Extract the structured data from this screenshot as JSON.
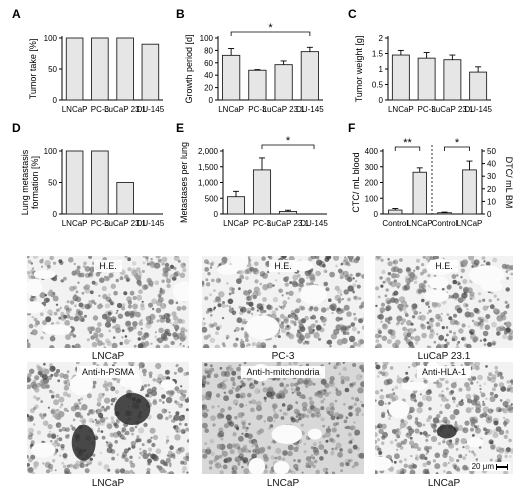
{
  "chart_data": [
    {
      "panel": "A",
      "type": "bar",
      "ylabel": "Tumor take [%]",
      "categories": [
        "LNCaP",
        "PC-3",
        "LuCaP 23.1",
        "DU-145"
      ],
      "values": [
        100,
        100,
        100,
        90
      ],
      "ylim": [
        0,
        100
      ],
      "yticks": [
        "0",
        "50",
        "100"
      ]
    },
    {
      "panel": "B",
      "type": "bar",
      "ylabel": "Growth period [d]",
      "categories": [
        "LNCaP",
        "PC-3",
        "LuCaP 23.1",
        "DU-145"
      ],
      "values": [
        72,
        48,
        57,
        78
      ],
      "errors": [
        11,
        1,
        6,
        7
      ],
      "ylim": [
        0,
        100
      ],
      "yticks": [
        "0",
        "20",
        "40",
        "60",
        "80",
        "100"
      ],
      "significance": {
        "label": "*",
        "from": 0,
        "to": 3
      }
    },
    {
      "panel": "C",
      "type": "bar",
      "ylabel": "Tumor weight [g]",
      "categories": [
        "LNCaP",
        "PC-3",
        "LuCaP 23.1",
        "DU-145"
      ],
      "values": [
        1.45,
        1.35,
        1.3,
        0.9
      ],
      "errors": [
        0.15,
        0.18,
        0.15,
        0.17
      ],
      "ylim": [
        0,
        2
      ],
      "yticks": [
        "0",
        "0.5",
        "1",
        "1.5",
        "2"
      ]
    },
    {
      "panel": "D",
      "type": "bar",
      "ylabel": "Lung metastasis formation [%]",
      "categories": [
        "LNCaP",
        "PC-3",
        "LuCaP 23.1",
        "DU-145"
      ],
      "values": [
        100,
        100,
        50,
        0
      ],
      "ylim": [
        0,
        100
      ],
      "yticks": [
        "0",
        "50",
        "100"
      ]
    },
    {
      "panel": "E",
      "type": "bar",
      "ylabel": "Metastases per lung",
      "categories": [
        "LNCaP",
        "PC-3",
        "LuCaP 23.1",
        "DU-145"
      ],
      "values": [
        550,
        1400,
        80,
        0
      ],
      "errors": [
        170,
        380,
        40,
        0
      ],
      "ylim": [
        0,
        2000
      ],
      "yticks": [
        "0",
        "500",
        "1,000",
        "1,500",
        "2,000"
      ],
      "significance": {
        "label": "*",
        "from": 1,
        "to": 3
      }
    },
    {
      "panel": "F",
      "type": "bar",
      "groups": [
        {
          "ylabel": "CTC/ mL blood",
          "categories": [
            "Control",
            "LNCaP"
          ],
          "values": [
            25,
            265
          ],
          "errors": [
            10,
            28
          ],
          "ylim": [
            0,
            400
          ],
          "yticks": [
            "0",
            "100",
            "200",
            "300",
            "400"
          ],
          "significance": {
            "label": "**"
          }
        },
        {
          "ylabel": "DTC/ mL BM",
          "categories": [
            "Control",
            "LNCaP"
          ],
          "values": [
            1,
            35
          ],
          "errors": [
            0.5,
            7
          ],
          "ylim": [
            0,
            50
          ],
          "yticks": [
            "0",
            "10",
            "20",
            "30",
            "40",
            "50"
          ],
          "significance": {
            "label": "*"
          }
        }
      ]
    }
  ],
  "histology": [
    {
      "stain": "H.E.",
      "caption": "LNCaP"
    },
    {
      "stain": "H.E.",
      "caption": "PC-3"
    },
    {
      "stain": "H.E.",
      "caption": "LuCaP 23.1"
    },
    {
      "stain": "Anti-h-PSMA",
      "caption": "LNCaP"
    },
    {
      "stain": "Anti-h-mitchondria",
      "caption": "LNCaP"
    },
    {
      "stain": "Anti-HLA-1",
      "caption": "LNCaP"
    }
  ],
  "scale_bar": "20 μm",
  "colors": {
    "bar": "#e6e6e6",
    "stroke": "#222222",
    "tissue": "#8a8a8a"
  }
}
